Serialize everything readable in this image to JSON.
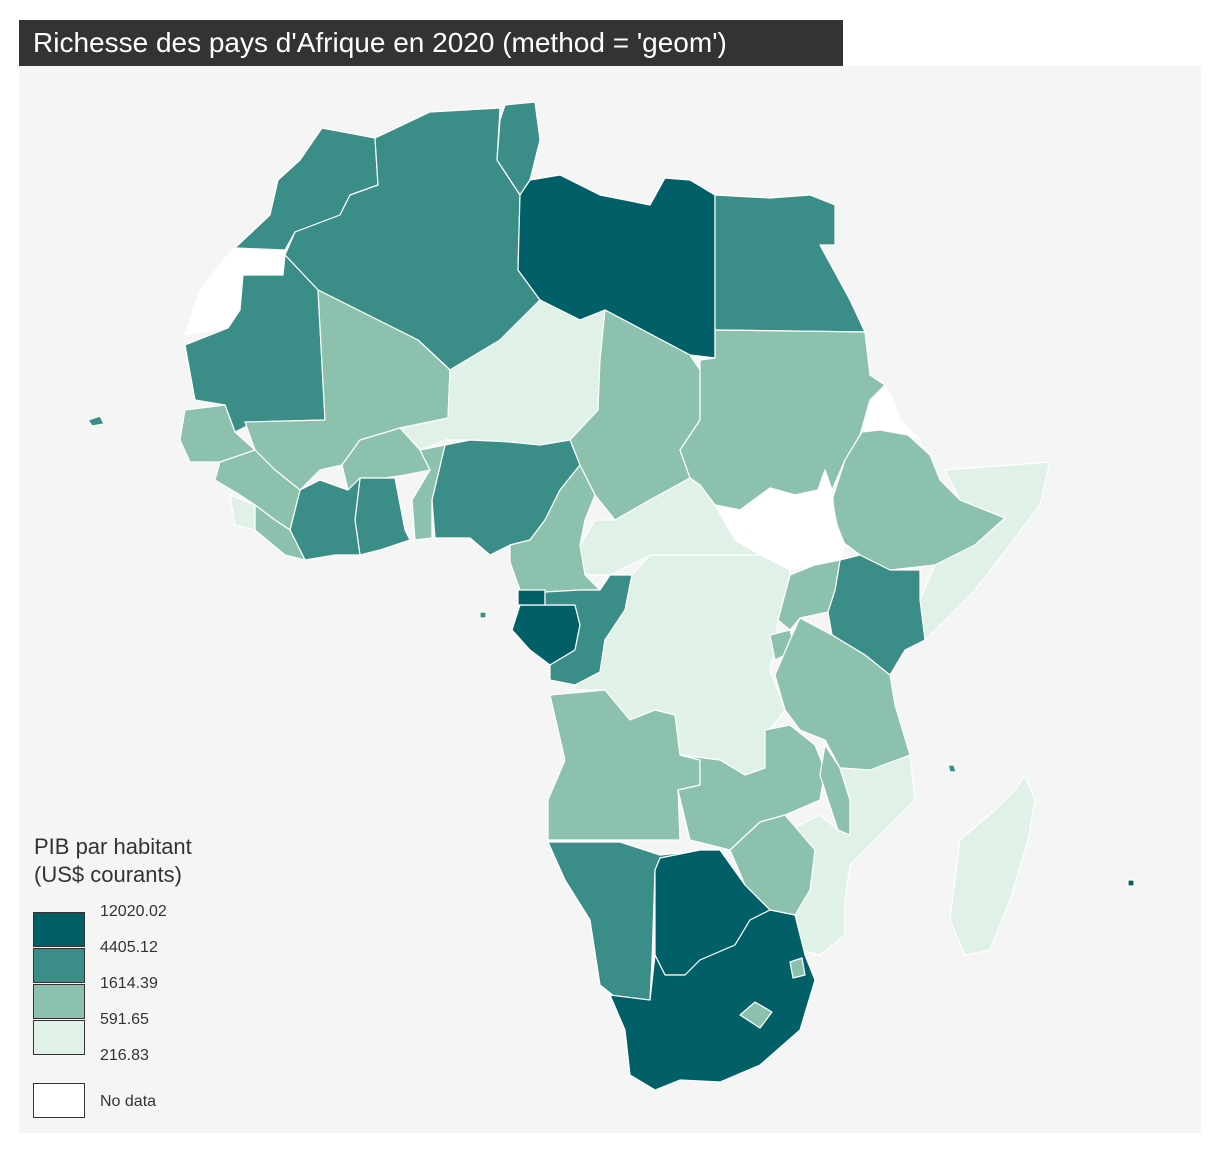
{
  "title": "Richesse des pays d'Afrique en 2020 (method = 'geom')",
  "legend": {
    "title_line1": "PIB par habitant",
    "title_line2": "(US$ courants)",
    "breaks": [
      "12020.02",
      "4405.12",
      "1614.39",
      "591.65",
      "216.83"
    ],
    "classes": [
      {
        "range": "4405.12 – 12020.02",
        "color": "#015f67"
      },
      {
        "range": "1614.39 – 4405.12",
        "color": "#3b8d87"
      },
      {
        "range": "591.65 – 1614.39",
        "color": "#8bc1ad"
      },
      {
        "range": "216.83 – 591.65",
        "color": "#e0f1e7"
      }
    ],
    "no_data_label": "No data",
    "no_data_color": "#ffffff"
  },
  "colors": {
    "background": "#f5f5f5",
    "title_bg": "#333333",
    "title_text": "#ffffff",
    "border": "#ffffff"
  }
}
